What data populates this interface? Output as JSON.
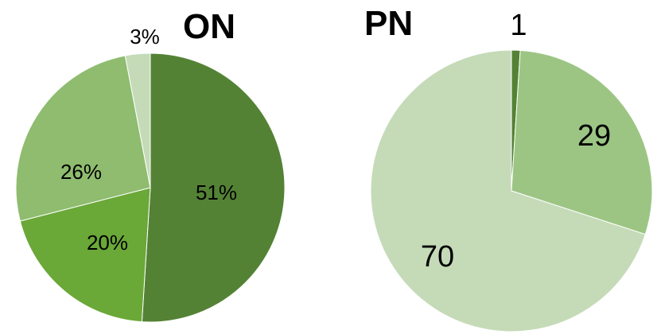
{
  "chart_data": [
    {
      "type": "pie",
      "title": "ON",
      "categories": [
        "",
        "",
        "",
        ""
      ],
      "values": [
        51,
        20,
        26,
        3
      ],
      "labels": [
        "51%",
        "20%",
        "26%",
        "3%"
      ],
      "colors": [
        "#548235",
        "#6aa838",
        "#8fbc6f",
        "#c5dbb8"
      ],
      "start_angle_deg": 0,
      "direction": "clockwise"
    },
    {
      "type": "pie",
      "title": "PN",
      "categories": [
        "",
        "",
        ""
      ],
      "values": [
        1,
        29,
        70
      ],
      "labels": [
        "1",
        "29",
        "70"
      ],
      "colors": [
        "#548235",
        "#9cc584",
        "#c5dbb8"
      ],
      "start_angle_deg": 0,
      "direction": "clockwise"
    }
  ]
}
